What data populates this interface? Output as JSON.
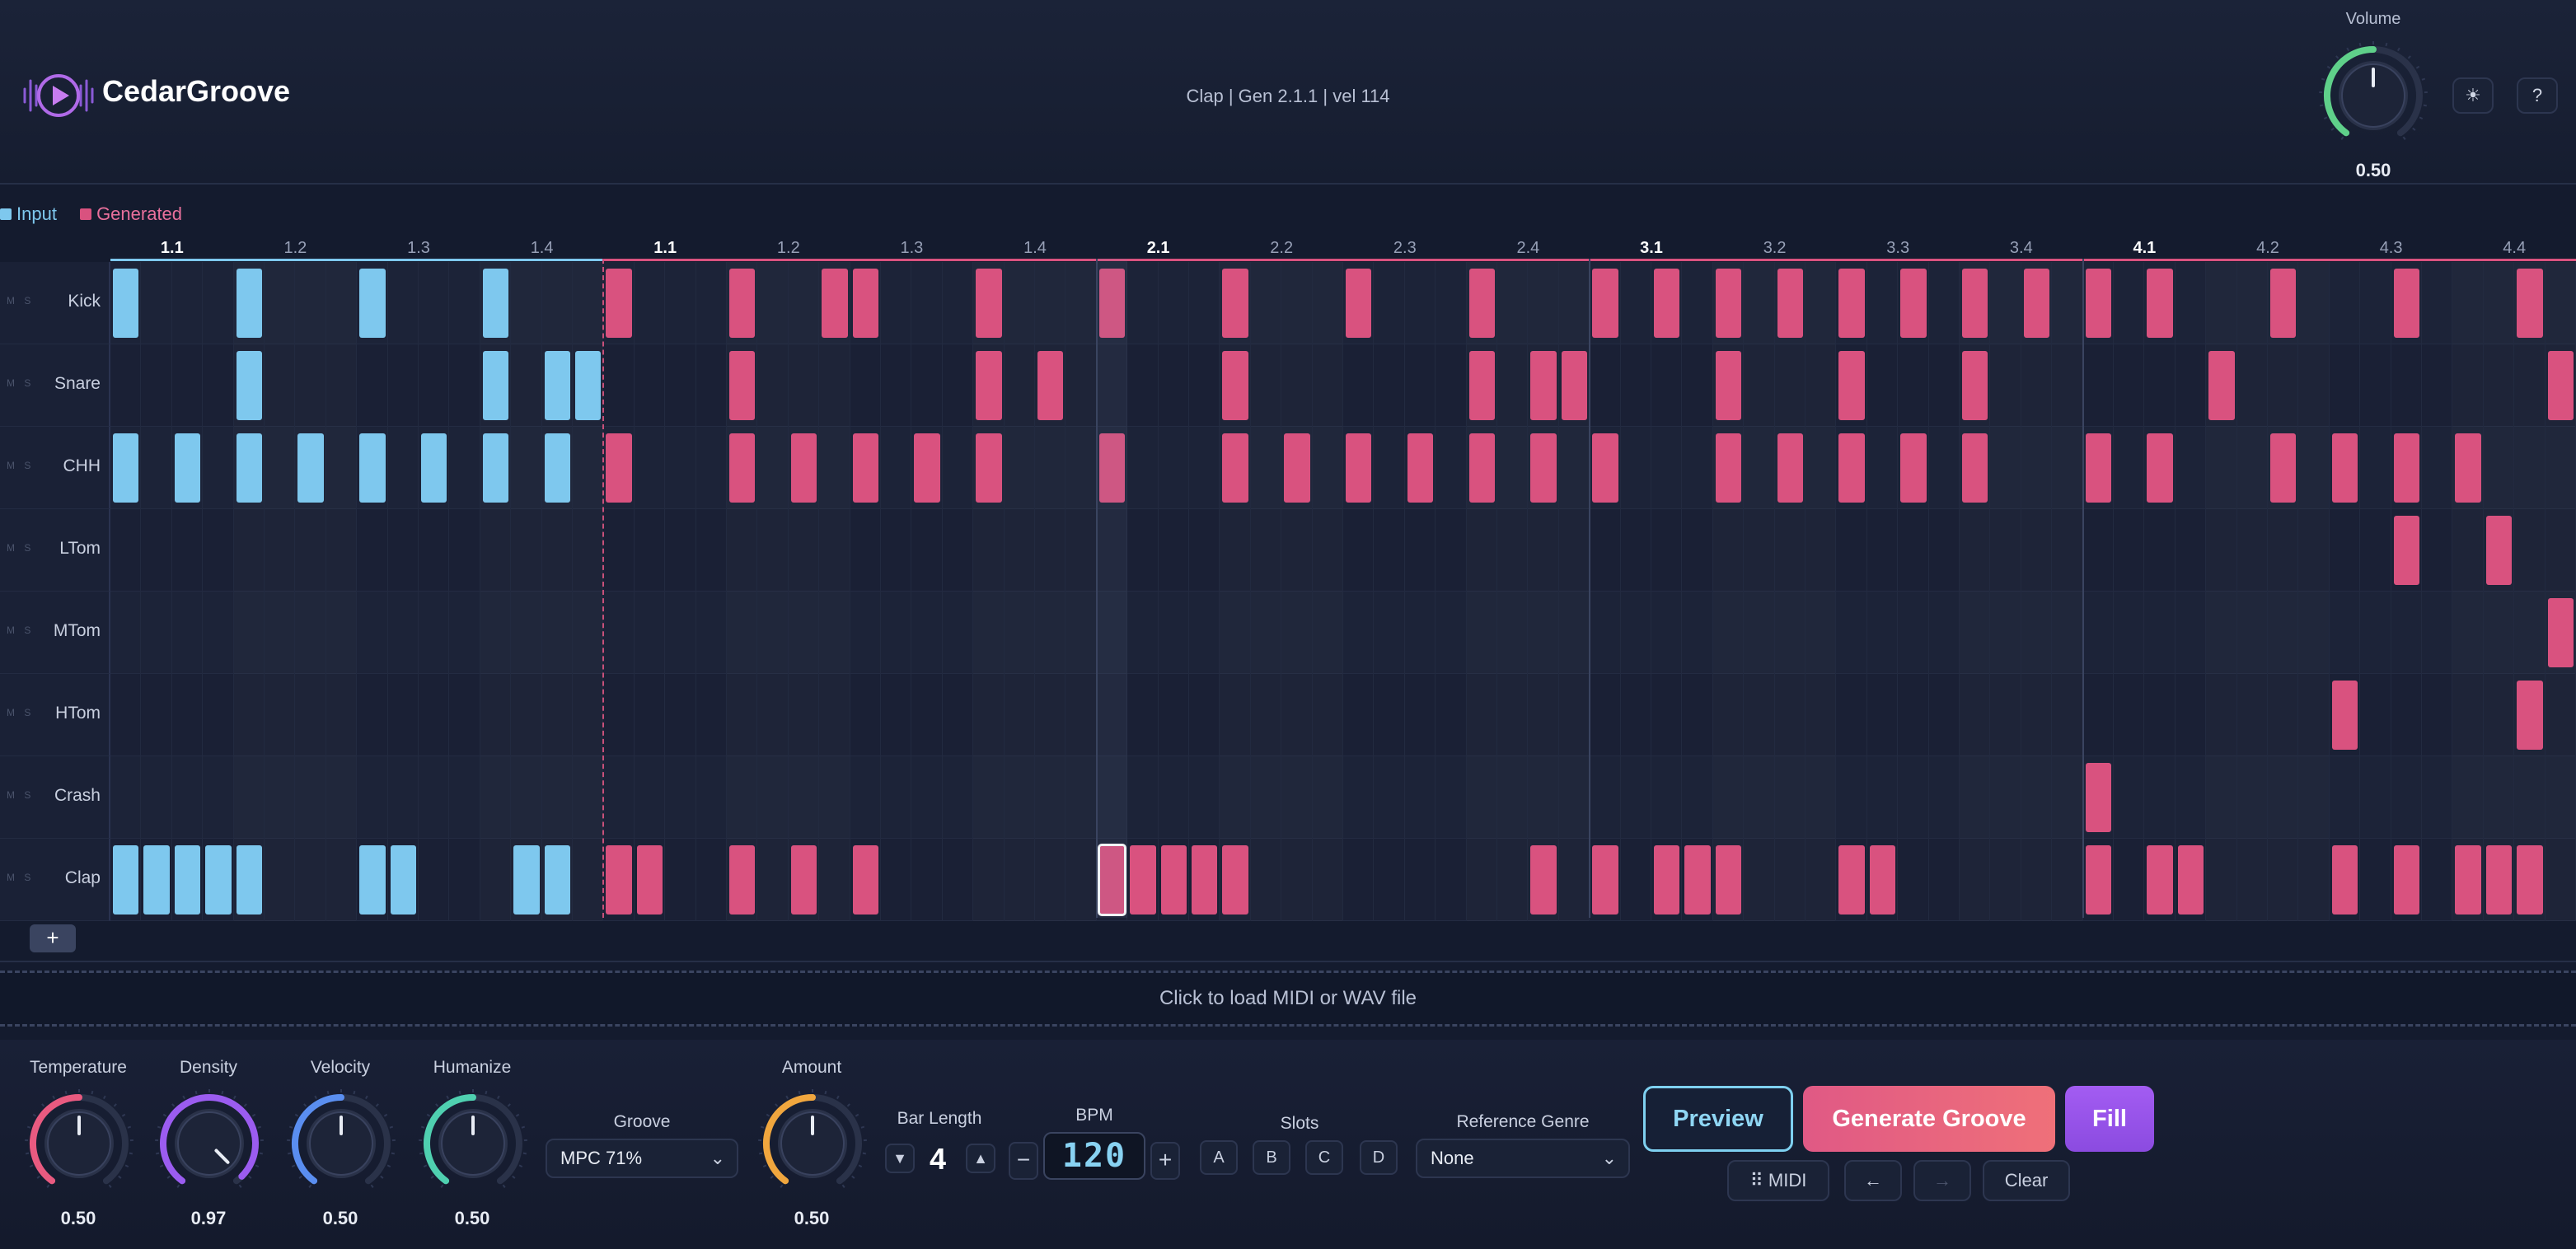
{
  "app": {
    "brand": "CedarGroove",
    "status": "Clap | Gen 2.1.1 | vel 114"
  },
  "volume": {
    "label": "Volume",
    "value": "0.50",
    "level": 0.5
  },
  "header_buttons": [
    {
      "label": "☀",
      "icon": "sun-icon"
    },
    {
      "label": "?",
      "icon": "help-icon"
    }
  ],
  "legend": {
    "input": "Input",
    "generated": "Generated"
  },
  "colors": {
    "input": "#7ec8ee",
    "generated": "#d9527f",
    "accent_purple": "#9b5cf0",
    "accent_green": "#5fd08a"
  },
  "grid": {
    "steps_per_bar": 16,
    "bars": 5,
    "input_bars": 1,
    "beat_labels": [
      "1.1",
      "1.2",
      "1.3",
      "1.4",
      "1.1",
      "1.2",
      "1.3",
      "1.4",
      "2.1",
      "2.2",
      "2.3",
      "2.4",
      "3.1",
      "3.2",
      "3.3",
      "3.4",
      "4.1",
      "4.2",
      "4.3",
      "4.4"
    ],
    "tracks": [
      {
        "name": "Kick",
        "input": [
          0,
          4,
          8,
          12
        ],
        "generated": [
          16,
          20,
          23,
          24,
          28,
          32,
          36,
          40,
          44,
          48,
          50,
          52,
          54,
          56,
          58,
          60,
          62,
          64,
          66,
          70,
          74,
          78
        ]
      },
      {
        "name": "Snare",
        "input": [
          4,
          12,
          14,
          15
        ],
        "generated": [
          20,
          28,
          30,
          36,
          44,
          46,
          47,
          52,
          56,
          60,
          68,
          79
        ]
      },
      {
        "name": "CHH",
        "input": [
          0,
          2,
          4,
          6,
          8,
          10,
          12,
          14
        ],
        "generated": [
          16,
          20,
          22,
          24,
          26,
          28,
          32,
          36,
          38,
          40,
          42,
          44,
          46,
          48,
          52,
          54,
          56,
          58,
          60,
          64,
          66,
          70,
          72,
          74,
          76
        ]
      },
      {
        "name": "LTom",
        "input": [],
        "generated": [
          74,
          77
        ]
      },
      {
        "name": "MTom",
        "input": [],
        "generated": [
          79
        ]
      },
      {
        "name": "HTom",
        "input": [],
        "generated": [
          72,
          78
        ]
      },
      {
        "name": "Crash",
        "input": [],
        "generated": [
          64
        ]
      },
      {
        "name": "Clap",
        "input": [
          0,
          1,
          2,
          3,
          4,
          8,
          9,
          13,
          14
        ],
        "generated": [
          16,
          17,
          20,
          22,
          24,
          32,
          33,
          34,
          35,
          36,
          46,
          48,
          50,
          51,
          52,
          56,
          57,
          64,
          66,
          67,
          72,
          74,
          76,
          77,
          78
        ]
      }
    ],
    "selected": {
      "track": 7,
      "step": 32
    },
    "track_controls": "M S",
    "add_track_label": "+"
  },
  "dropzone": {
    "text": "Click to load MIDI or WAV file"
  },
  "controls": {
    "knobs": [
      {
        "label": "Temperature",
        "value": "0.50",
        "level": 0.5,
        "color": "#e95a80"
      },
      {
        "label": "Density",
        "value": "0.97",
        "level": 0.97,
        "color": "#9b5cf0"
      },
      {
        "label": "Velocity",
        "value": "0.50",
        "level": 0.5,
        "color": "#5a8ef0"
      },
      {
        "label": "Humanize",
        "value": "0.50",
        "level": 0.5,
        "color": "#4fd0b0"
      }
    ],
    "groove": {
      "label": "Groove",
      "value": "MPC 71%"
    },
    "amount": {
      "label": "Amount",
      "value": "0.50",
      "level": 0.5,
      "color": "#f0a63e"
    },
    "bar_length": {
      "label": "Bar Length",
      "value": "4",
      "down": "▼",
      "up": "▲"
    },
    "bpm": {
      "label": "BPM",
      "value": "120",
      "minus": "−",
      "plus": "+"
    },
    "slots": {
      "label": "Slots",
      "items": [
        "A",
        "B",
        "C",
        "D"
      ]
    },
    "reference_genre": {
      "label": "Reference Genre",
      "value": "None"
    },
    "buttons": {
      "preview": "Preview",
      "generate": "Generate Groove",
      "fill": "Fill",
      "midi": "⠿ MIDI",
      "undo": "←",
      "redo": "→",
      "clear": "Clear"
    }
  }
}
